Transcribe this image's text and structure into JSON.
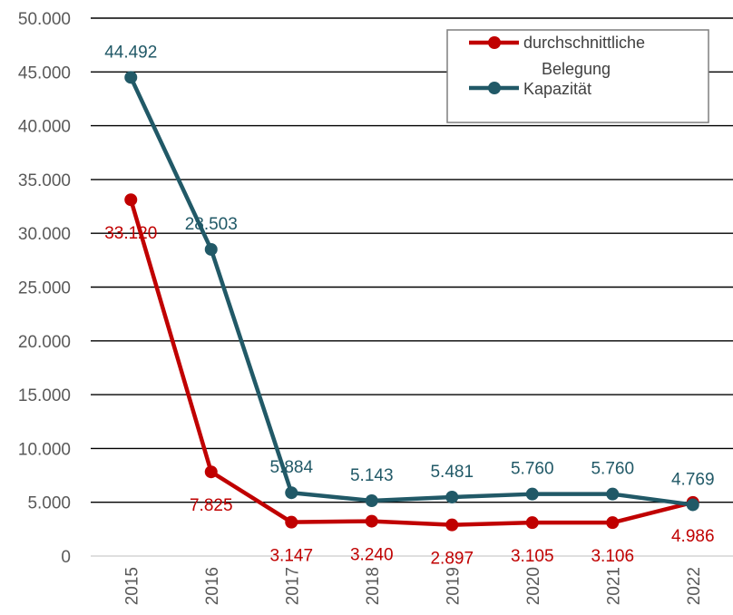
{
  "chart_data": {
    "type": "line",
    "categories": [
      "2015",
      "2016",
      "2017",
      "2018",
      "2019",
      "2020",
      "2021",
      "2022"
    ],
    "series": [
      {
        "name": "durchschnittliche Belegung",
        "name_lines": [
          "durchschnittliche",
          "Belegung"
        ],
        "color": "#C00000",
        "values": [
          33120,
          7825,
          3147,
          3240,
          2897,
          3105,
          3106,
          4986
        ],
        "labels": [
          "33.120",
          "7.825",
          "3.147",
          "3.240",
          "2.897",
          "3.105",
          "3.106",
          "4.986"
        ]
      },
      {
        "name": "Kapazität",
        "name_lines": [
          "Kapazität"
        ],
        "color": "#215967",
        "values": [
          44492,
          28503,
          5884,
          5143,
          5481,
          5760,
          5760,
          4769
        ],
        "labels": [
          "44.492",
          "28.503",
          "5.884",
          "5.143",
          "5.481",
          "5.760",
          "5.760",
          "4.769"
        ]
      }
    ],
    "y_ticks": [
      0,
      5000,
      10000,
      15000,
      20000,
      25000,
      30000,
      35000,
      40000,
      45000,
      50000
    ],
    "y_tick_labels": [
      "0",
      "5.000",
      "10.000",
      "15.000",
      "20.000",
      "25.000",
      "30.000",
      "35.000",
      "40.000",
      "45.000",
      "50.000"
    ],
    "ylim": [
      0,
      50000
    ],
    "grid": true,
    "legend": "top-right"
  }
}
